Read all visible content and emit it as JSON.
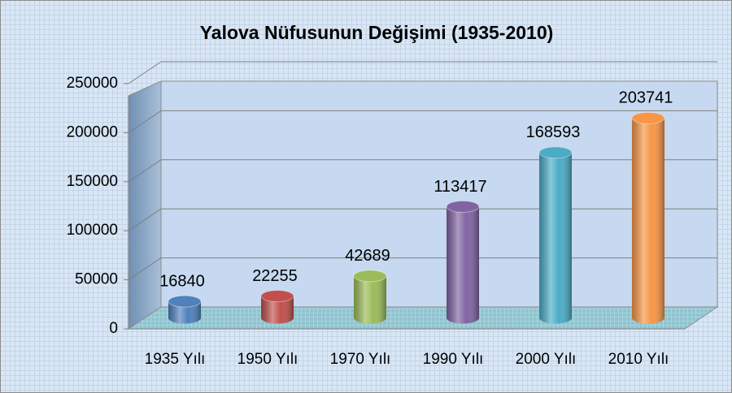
{
  "chart_data": {
    "type": "bar3d",
    "title": "Yalova Nüfusunun Değişimi (1935-2010)",
    "categories": [
      "1935 Yılı",
      "1950 Yılı",
      "1970 Yılı",
      "1990 Yılı",
      "2000 Yılı",
      "2010 Yılı"
    ],
    "values": [
      16840,
      22255,
      42689,
      113417,
      168593,
      203741
    ],
    "colors": [
      "#4f81bd",
      "#c0504d",
      "#9bbb59",
      "#8064a2",
      "#4bacc6",
      "#f79646"
    ],
    "ylim": [
      0,
      250000
    ],
    "yticks": [
      0,
      50000,
      100000,
      150000,
      200000,
      250000
    ],
    "grid": true
  }
}
